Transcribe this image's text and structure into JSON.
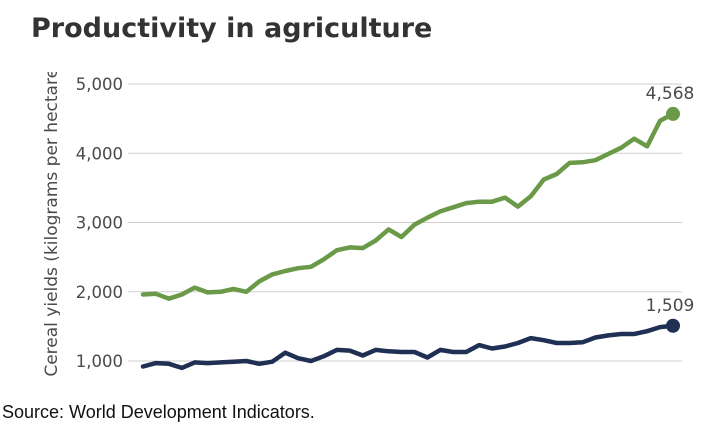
{
  "chart_data": {
    "type": "line",
    "title": "Productivity in agriculture",
    "ylabel": "Cereal yields (kilograms per hectare)",
    "ylim": [
      1000,
      5000
    ],
    "yticks": [
      "1,000",
      "2,000",
      "3,000",
      "4,000",
      "5,000"
    ],
    "grid": true,
    "series": [
      {
        "color": "#6a9a48",
        "end_label": "4,568",
        "values": [
          1960,
          1970,
          1900,
          1960,
          2060,
          1990,
          2000,
          2040,
          2000,
          2150,
          2250,
          2300,
          2340,
          2360,
          2470,
          2600,
          2640,
          2630,
          2740,
          2900,
          2790,
          2970,
          3070,
          3160,
          3220,
          3280,
          3300,
          3300,
          3360,
          3230,
          3380,
          3620,
          3700,
          3860,
          3870,
          3900,
          3990,
          4080,
          4210,
          4100,
          4470,
          4568
        ]
      },
      {
        "color": "#1f3054",
        "end_label": "1,509",
        "values": [
          920,
          970,
          960,
          900,
          980,
          970,
          980,
          990,
          1000,
          960,
          990,
          1120,
          1040,
          1000,
          1070,
          1160,
          1150,
          1080,
          1160,
          1140,
          1130,
          1130,
          1050,
          1160,
          1130,
          1130,
          1230,
          1180,
          1210,
          1260,
          1330,
          1300,
          1260,
          1260,
          1270,
          1340,
          1370,
          1390,
          1390,
          1430,
          1490,
          1509
        ]
      }
    ]
  },
  "source": "Source: World Development Indicators."
}
